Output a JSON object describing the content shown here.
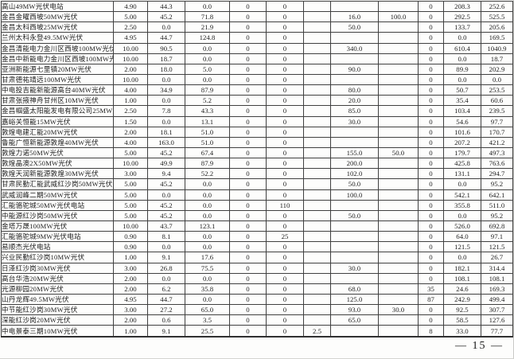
{
  "page": {
    "number_label": "— 15 —"
  },
  "table": {
    "rows": [
      {
        "name": "高山49MW光伏电站",
        "values": [
          "4.90",
          "44.3",
          "0.0",
          "0",
          "0",
          "",
          "",
          "",
          "0",
          "208.3",
          "252.6"
        ]
      },
      {
        "name": "金昌金曜西坡50MW光伏",
        "values": [
          "5.00",
          "45.2",
          "71.8",
          "0",
          "0",
          "",
          "16.0",
          "100.0",
          "0",
          "292.5",
          "525.5"
        ]
      },
      {
        "name": "金昌太科西坡25MW光伏",
        "values": [
          "2.50",
          "0.0",
          "21.9",
          "0",
          "0",
          "",
          "50.0",
          "",
          "0",
          "133.7",
          "205.6"
        ]
      },
      {
        "name": "兰州太科永登49.5MW光伏",
        "values": [
          "4.95",
          "44.7",
          "124.8",
          "0",
          "0",
          "",
          "",
          "",
          "0",
          "0.0",
          "169.5"
        ]
      },
      {
        "name": "金昌清能电力金川区西坡100MW光伏",
        "values": [
          "10.00",
          "90.5",
          "0.0",
          "0",
          "0",
          "",
          "340.0",
          "",
          "0",
          "610.4",
          "1040.9"
        ]
      },
      {
        "name": "金昌中新能电力金川区西坡100MW光伏",
        "values": [
          "10.00",
          "18.7",
          "0.0",
          "0",
          "0",
          "",
          "",
          "",
          "0",
          "0.0",
          "18.7"
        ]
      },
      {
        "name": "亚洲新能源七里镇20MW光伏",
        "values": [
          "2.00",
          "18.0",
          "5.0",
          "0",
          "0",
          "",
          "90.0",
          "",
          "0",
          "89.9",
          "202.9"
        ]
      },
      {
        "name": "甘肃德祐靖远100MW光伏",
        "values": [
          "10.00",
          "0.0",
          "0.0",
          "0",
          "0",
          "",
          "",
          "",
          "0",
          "0.0",
          "0.0"
        ]
      },
      {
        "name": "中电投吉能新能源高台40MW光伏",
        "values": [
          "4.00",
          "34.9",
          "87.9",
          "0",
          "0",
          "",
          "80.0",
          "",
          "0",
          "50.7",
          "253.5"
        ]
      },
      {
        "name": "甘肃张掖神舟甘州区10MW光伏",
        "values": [
          "1.00",
          "0.0",
          "5.2",
          "0",
          "0",
          "",
          "20.0",
          "",
          "0",
          "35.4",
          "60.6"
        ]
      },
      {
        "name": "金昌帼盛太阳能发电有限公司25MW光伏",
        "values": [
          "2.50",
          "7.8",
          "43.3",
          "0",
          "0",
          "",
          "85.0",
          "",
          "0",
          "103.4",
          "239.5"
        ]
      },
      {
        "name": "嘉峪关恒能15MW光伏",
        "values": [
          "1.50",
          "0.0",
          "13.1",
          "0",
          "0",
          "",
          "30.0",
          "",
          "0",
          "54.6",
          "97.7"
        ]
      },
      {
        "name": "敦煌电建汇能20MW光伏",
        "values": [
          "2.00",
          "18.1",
          "51.0",
          "0",
          "0",
          "",
          "",
          "",
          "0",
          "101.6",
          "170.7"
        ]
      },
      {
        "name": "鲁能广恒新能源敦煌40MW光伏",
        "values": [
          "4.00",
          "163.0",
          "51.0",
          "0",
          "0",
          "",
          "",
          "",
          "0",
          "207.2",
          "421.2"
        ]
      },
      {
        "name": "敦煌力诺50MW光伏",
        "values": [
          "5.00",
          "45.2",
          "67.4",
          "0",
          "0",
          "",
          "155.0",
          "50.0",
          "0",
          "179.7",
          "497.3"
        ]
      },
      {
        "name": "敦煌晶澳2X50MW光伏",
        "values": [
          "10.00",
          "49.9",
          "87.9",
          "0",
          "0",
          "",
          "200.0",
          "",
          "0",
          "425.8",
          "763.6"
        ]
      },
      {
        "name": "敦煌天润新能源敦煌30MW光伏",
        "values": [
          "3.00",
          "9.4",
          "52.2",
          "0",
          "0",
          "",
          "102.0",
          "",
          "0",
          "131.1",
          "294.7"
        ]
      },
      {
        "name": "甘肃民勤汇能武威红沙岗50MW光伏",
        "values": [
          "5.00",
          "45.2",
          "0.0",
          "0",
          "0",
          "",
          "50.0",
          "",
          "0",
          "0.0",
          "95.2"
        ]
      },
      {
        "name": "武威润峰二期50MW光伏",
        "values": [
          "5.00",
          "0.0",
          "0.0",
          "0",
          "0",
          "",
          "100.0",
          "",
          "0",
          "542.1",
          "642.1"
        ]
      },
      {
        "name": "汇能骆驼城50MW光伏电站",
        "values": [
          "5.00",
          "45.2",
          "0.0",
          "0",
          "110",
          "",
          "",
          "",
          "0",
          "355.8",
          "511.0"
        ]
      },
      {
        "name": "中能源红沙岗50MW光伏",
        "values": [
          "5.00",
          "45.2",
          "0.0",
          "0",
          "0",
          "",
          "50.0",
          "",
          "0",
          "0.0",
          "95.2"
        ]
      },
      {
        "name": "金塔万晟100MW光伏",
        "values": [
          "10.00",
          "43.7",
          "123.1",
          "0",
          "0",
          "",
          "",
          "",
          "0",
          "526.0",
          "692.8"
        ]
      },
      {
        "name": "汇能骆驼城9MW光伏电站",
        "values": [
          "0.90",
          "8.1",
          "0.0",
          "0",
          "25",
          "",
          "",
          "",
          "0",
          "64.0",
          "97.1"
        ]
      },
      {
        "name": "易顺杰光伏电站",
        "values": [
          "0.90",
          "0.0",
          "0.0",
          "0",
          "0",
          "",
          "",
          "",
          "0",
          "121.5",
          "121.5"
        ]
      },
      {
        "name": "兴业民勤红沙岗10MW光伏",
        "values": [
          "1.00",
          "9.1",
          "17.6",
          "0",
          "0",
          "",
          "",
          "",
          "0",
          "0.0",
          "26.7"
        ]
      },
      {
        "name": "日泽红沙岗30MW光伏",
        "values": [
          "3.00",
          "26.8",
          "75.5",
          "0",
          "0",
          "",
          "30.0",
          "",
          "0",
          "182.1",
          "314.4"
        ]
      },
      {
        "name": "高台华浩20MW光伏",
        "values": [
          "2.00",
          "0.0",
          "0.0",
          "0",
          "0",
          "",
          "",
          "",
          "0",
          "108.1",
          "108.1"
        ]
      },
      {
        "name": "光源柳园20MW光伏",
        "values": [
          "2.00",
          "6.2",
          "35.8",
          "0",
          "0",
          "",
          "68.0",
          "",
          "35",
          "24.6",
          "169.3"
        ]
      },
      {
        "name": "山丹龙辉49.5MW光伏",
        "values": [
          "4.95",
          "44.7",
          "0.0",
          "0",
          "0",
          "",
          "125.0",
          "",
          "87",
          "242.9",
          "499.4"
        ]
      },
      {
        "name": "中节能红沙岗30MW光伏",
        "values": [
          "3.00",
          "27.2",
          "65.0",
          "0",
          "0",
          "",
          "93.0",
          "30.0",
          "0",
          "92.5",
          "307.7"
        ]
      },
      {
        "name": "深能红沙岗20MW光伏",
        "values": [
          "2.00",
          "0.6",
          "3.5",
          "0",
          "0",
          "",
          "65.0",
          "",
          "0",
          "58.5",
          "127.6"
        ]
      },
      {
        "name": "中电景泰三期10MW光伏",
        "values": [
          "1.00",
          "9.1",
          "25.5",
          "0",
          "0",
          "2.5",
          "",
          "",
          "8",
          "33.0",
          "77.7"
        ]
      }
    ]
  }
}
